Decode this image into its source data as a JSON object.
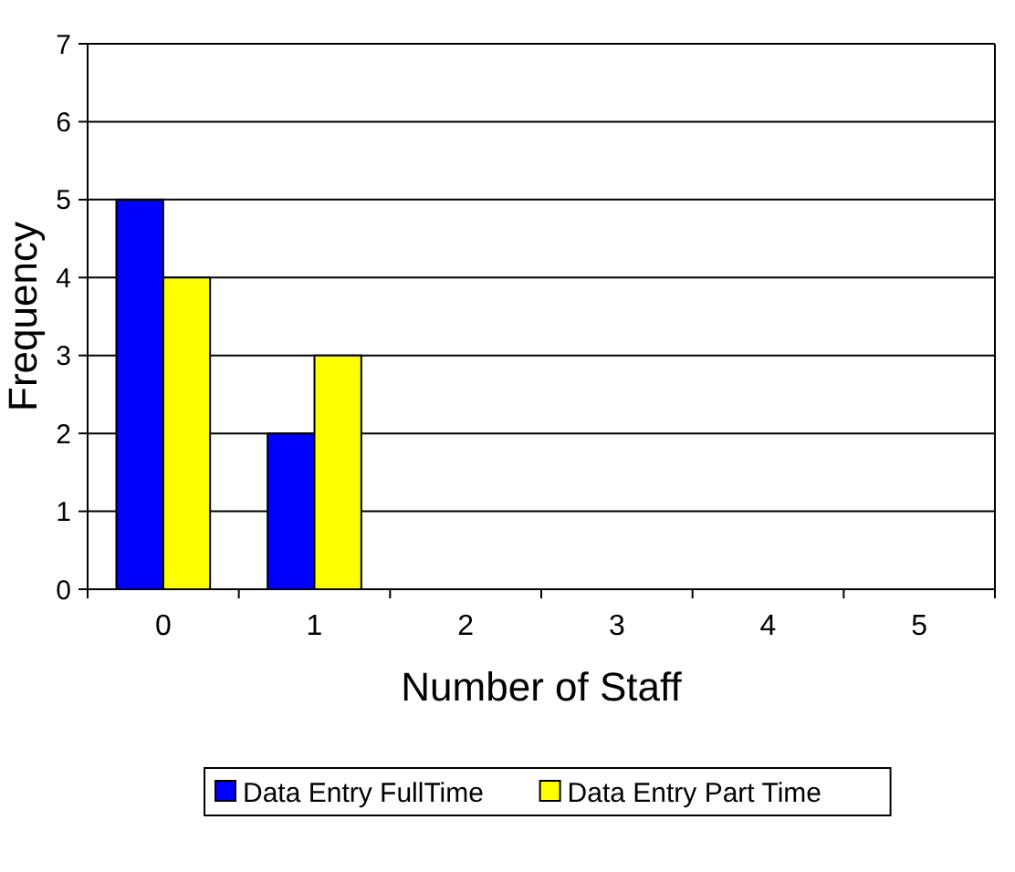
{
  "chart_data": {
    "type": "bar",
    "xlabel": "Number of Staff",
    "ylabel": "Frequency",
    "categories": [
      "0",
      "1",
      "2",
      "3",
      "4",
      "5"
    ],
    "series": [
      {
        "name": "Data Entry FullTime",
        "color": "#0000ff",
        "values": [
          5,
          2,
          0,
          0,
          0,
          0
        ]
      },
      {
        "name": "Data Entry Part Time",
        "color": "#ffff00",
        "values": [
          4,
          3,
          0,
          0,
          0,
          0
        ]
      }
    ],
    "ylim": [
      0,
      7
    ],
    "yticks": [
      0,
      1,
      2,
      3,
      4,
      5,
      6,
      7
    ],
    "grid": "y",
    "legend": "bottom"
  }
}
